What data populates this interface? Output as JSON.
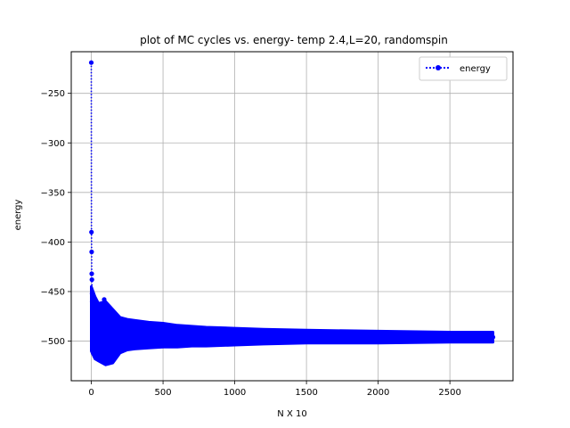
{
  "chart_data": {
    "type": "line",
    "title": "plot of MC cycles vs. energy- temp 2.4,L=20, randomspin",
    "xlabel": "N X 10",
    "ylabel": "energy",
    "xlim": [
      -140,
      2940
    ],
    "ylim": [
      -540,
      -208
    ],
    "xticks": [
      0,
      500,
      1000,
      1500,
      2000,
      2500
    ],
    "yticks": [
      -500,
      -450,
      -400,
      -350,
      -300,
      -250
    ],
    "grid": true,
    "legend_position": "top-right",
    "series": [
      {
        "name": "energy",
        "color": "#0000ff",
        "marker": "circle",
        "linestyle": "dotted",
        "x": [
          0,
          1,
          2,
          3,
          4,
          5,
          6,
          7,
          8,
          9,
          10,
          12,
          14,
          16,
          18,
          20,
          25,
          30,
          40,
          50,
          60,
          70,
          80,
          90,
          100,
          120,
          140,
          160,
          180,
          200,
          250,
          300,
          400,
          500,
          600,
          700,
          800,
          900,
          1000,
          1200,
          1400,
          1600,
          1800,
          2000,
          2200,
          2400,
          2600,
          2800
        ],
        "y": [
          -219,
          -390,
          -410,
          -432,
          -438,
          -452,
          -460,
          -470,
          -480,
          -489,
          -498,
          -512,
          -478,
          -505,
          -465,
          -490,
          -500,
          -485,
          -495,
          -508,
          -470,
          -493,
          -520,
          -458,
          -500,
          -488,
          -505,
          -515,
          -478,
          -498,
          -495,
          -490,
          -494,
          -497,
          -495,
          -493,
          -496,
          -497,
          -495,
          -496,
          -497,
          -495,
          -496,
          -497,
          -495,
          -497,
          -496,
          -496
        ],
        "band": {
          "x": [
            0,
            25,
            50,
            100,
            150,
            200,
            250,
            300,
            400,
            500,
            600,
            700,
            800,
            1000,
            1200,
            1500,
            2000,
            2500,
            2800
          ],
          "upper": [
            -445,
            -455,
            -462,
            -460,
            -468,
            -476,
            -478,
            -479,
            -481,
            -482,
            -484,
            -485,
            -486,
            -487,
            -488,
            -489,
            -490,
            -491,
            -491
          ],
          "lower": [
            -510,
            -518,
            -520,
            -524,
            -522,
            -512,
            -509,
            -508,
            -507,
            -506,
            -506,
            -505,
            -505,
            -504,
            -503,
            -502,
            -502,
            -501,
            -501
          ]
        }
      }
    ]
  }
}
